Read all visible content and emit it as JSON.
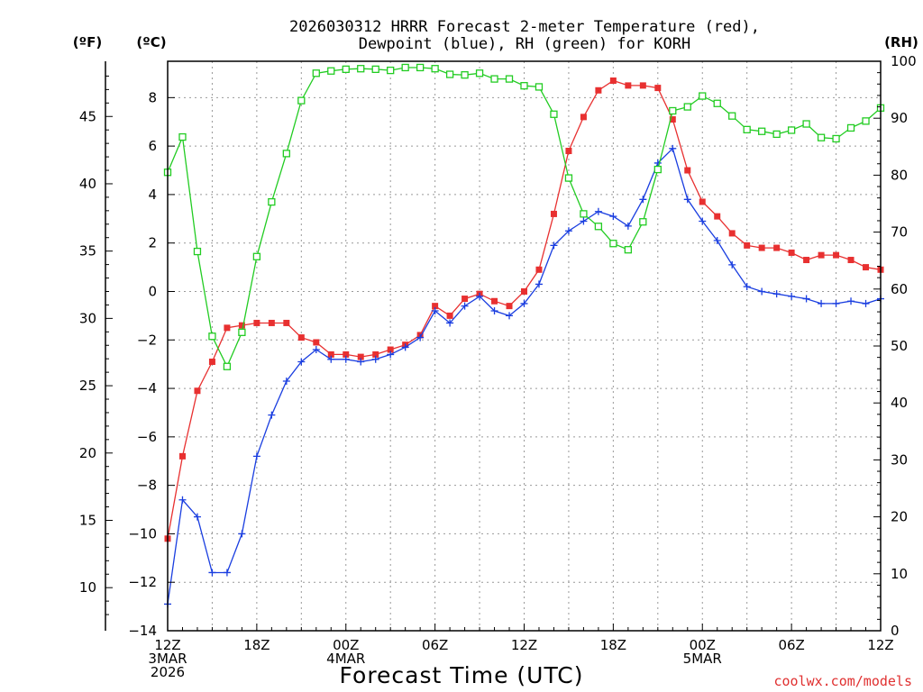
{
  "chart_data": {
    "type": "line",
    "title_lines": [
      "2026030312 HRRR Forecast 2-meter Temperature (red),",
      "Dewpoint (blue), RH (green) for KORH"
    ],
    "xlabel": "Forecast Time (UTC)",
    "credit": "coolwx.com/models",
    "left_unit_f": "(ºF)",
    "left_unit_c": "(ºC)",
    "right_unit": "(RH)",
    "x_range_hours": [
      0,
      48
    ],
    "ylim_c": [
      -14,
      9.5
    ],
    "ylim_rh": [
      0,
      100
    ],
    "x_ticks": [
      {
        "h": 0,
        "lines": [
          "12Z",
          "3MAR",
          "2026"
        ]
      },
      {
        "h": 6,
        "lines": [
          "18Z"
        ]
      },
      {
        "h": 12,
        "lines": [
          "00Z",
          "4MAR"
        ]
      },
      {
        "h": 18,
        "lines": [
          "06Z"
        ]
      },
      {
        "h": 24,
        "lines": [
          "12Z"
        ]
      },
      {
        "h": 30,
        "lines": [
          "18Z"
        ]
      },
      {
        "h": 36,
        "lines": [
          "00Z",
          "5MAR"
        ]
      },
      {
        "h": 42,
        "lines": [
          "06Z"
        ]
      },
      {
        "h": 48,
        "lines": [
          "12Z"
        ]
      }
    ],
    "y_ticks_c": [
      -14,
      -12,
      -10,
      -8,
      -6,
      -4,
      -2,
      0,
      2,
      4,
      6,
      8
    ],
    "y_ticks_f": [
      10,
      15,
      20,
      25,
      30,
      35,
      40,
      45
    ],
    "y_ticks_rh": [
      0,
      10,
      20,
      30,
      40,
      50,
      60,
      70,
      80,
      90,
      100
    ],
    "series": [
      {
        "name": "Temperature",
        "color": "#e83030",
        "marker": "filled-square",
        "values": [
          -10.2,
          -6.8,
          -4.1,
          -2.9,
          -1.5,
          -1.4,
          -1.3,
          -1.3,
          -1.3,
          -1.9,
          -2.1,
          -2.6,
          -2.6,
          -2.7,
          -2.6,
          -2.4,
          -2.2,
          -1.8,
          -0.6,
          -1.0,
          -0.3,
          -0.1,
          -0.4,
          -0.6,
          0.0,
          0.9,
          3.2,
          5.8,
          7.2,
          8.3,
          8.7,
          8.5,
          8.5,
          8.4,
          7.1,
          5.0,
          3.7,
          3.1,
          2.4,
          1.9,
          1.8,
          1.8,
          1.6,
          1.3,
          1.5,
          1.5,
          1.3,
          1.0,
          0.9
        ]
      },
      {
        "name": "Dewpoint",
        "color": "#1a3ee0",
        "marker": "plus",
        "values": [
          -12.9,
          -8.6,
          -9.3,
          -11.6,
          -11.6,
          -10.0,
          -6.8,
          -5.1,
          -3.7,
          -2.9,
          -2.4,
          -2.8,
          -2.8,
          -2.9,
          -2.8,
          -2.6,
          -2.3,
          -1.9,
          -0.8,
          -1.3,
          -0.6,
          -0.2,
          -0.8,
          -1.0,
          -0.5,
          0.3,
          1.9,
          2.5,
          2.9,
          3.3,
          3.1,
          2.7,
          3.8,
          5.3,
          5.9,
          3.8,
          2.9,
          2.1,
          1.1,
          0.2,
          0.0,
          -0.1,
          -0.2,
          -0.3,
          -0.5,
          -0.5,
          -0.4,
          -0.5,
          -0.3
        ]
      },
      {
        "name": "RH",
        "color": "#22cc22",
        "marker": "open-square",
        "axis": "rh",
        "values": [
          80.5,
          86.7,
          66.6,
          51.7,
          46.4,
          52.4,
          65.7,
          75.3,
          83.8,
          93.1,
          97.9,
          98.3,
          98.6,
          98.7,
          98.6,
          98.4,
          98.9,
          98.9,
          98.7,
          97.7,
          97.6,
          97.9,
          96.9,
          96.9,
          95.7,
          95.5,
          90.7,
          79.5,
          73.2,
          71.0,
          68.0,
          66.9,
          71.8,
          81.0,
          91.3,
          92.0,
          93.9,
          92.6,
          90.4,
          88.0,
          87.7,
          87.2,
          87.9,
          89.0,
          86.6,
          86.4,
          88.3,
          89.5,
          91.8
        ]
      }
    ]
  }
}
